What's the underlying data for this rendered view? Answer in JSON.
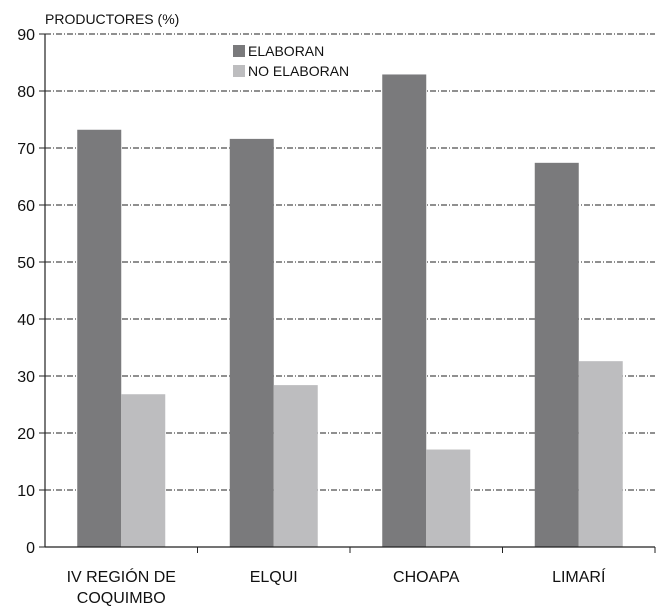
{
  "chart_data": {
    "type": "bar",
    "ylabel": "PRODUCTORES (%)",
    "ylim": [
      0,
      90
    ],
    "yticks": [
      0,
      10,
      20,
      30,
      40,
      50,
      60,
      70,
      80,
      90
    ],
    "grid": true,
    "legend_position": "top-center",
    "categories": [
      [
        "IV REGIÓN DE",
        "COQUIMBO"
      ],
      [
        "ELQUI"
      ],
      [
        "CHOAPA"
      ],
      [
        "LIMARÍ"
      ]
    ],
    "series": [
      {
        "name": "ELABORAN",
        "color": "#7a7a7c",
        "values": [
          73.2,
          71.6,
          82.9,
          67.4
        ]
      },
      {
        "name": "NO ELABORAN",
        "color": "#bdbdbf",
        "values": [
          26.8,
          28.4,
          17.1,
          32.6
        ]
      }
    ]
  }
}
